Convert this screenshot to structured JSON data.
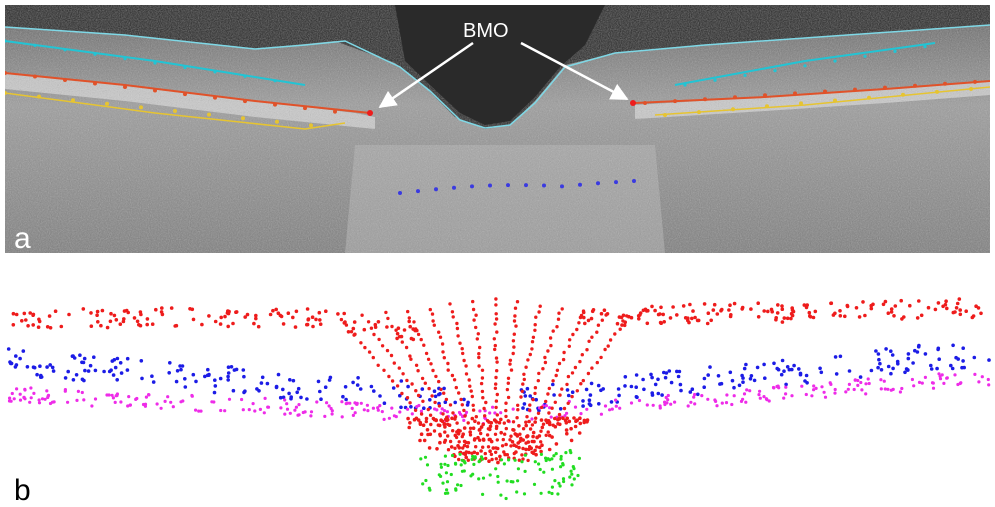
{
  "figure": {
    "panels": [
      {
        "label": "a",
        "annotation": "BMO"
      },
      {
        "label": "b"
      }
    ],
    "colors": {
      "ilm_trace": "#7fd8e6",
      "rnfl_trace": "#22c4d4",
      "rpe_trace": "#e0522a",
      "bm_trace": "#e6c431",
      "lamina_points": "#3a3ae0",
      "red_points": "#ee1c1c",
      "blue_points": "#1c1ce6",
      "magenta_points": "#ee2ce8",
      "green_points": "#22dd22"
    },
    "icons": [
      "arrow-icon"
    ]
  }
}
